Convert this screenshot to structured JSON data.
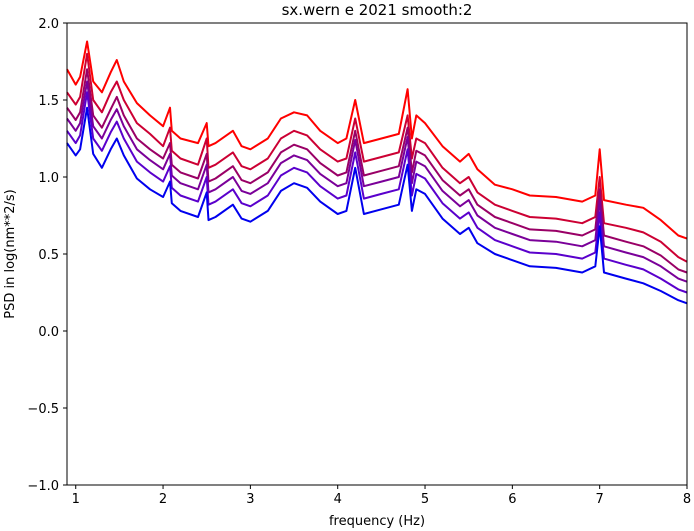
{
  "chart_data": {
    "type": "line",
    "title": "sx.wern e 2021 smooth:2",
    "xlabel": "frequency (Hz)",
    "ylabel": "PSD in log(nm**2/s)",
    "xlim": [
      0.9,
      8.0
    ],
    "ylim": [
      -1.0,
      2.0
    ],
    "xticks": [
      {
        "value": 1,
        "label": "1"
      },
      {
        "value": 2,
        "label": "2"
      },
      {
        "value": 3,
        "label": "3"
      },
      {
        "value": 4,
        "label": "4"
      },
      {
        "value": 5,
        "label": "5"
      },
      {
        "value": 6,
        "label": "6"
      },
      {
        "value": 7,
        "label": "7"
      },
      {
        "value": 8,
        "label": "8"
      }
    ],
    "yticks": [
      {
        "value": -1.0,
        "label": "−1.0"
      },
      {
        "value": -0.5,
        "label": "−0.5"
      },
      {
        "value": 0.0,
        "label": "0.0"
      },
      {
        "value": 0.5,
        "label": "0.5"
      },
      {
        "value": 1.0,
        "label": "1.0"
      },
      {
        "value": 1.5,
        "label": "1.5"
      },
      {
        "value": 2.0,
        "label": "2.0"
      }
    ],
    "grid": false,
    "legend": "none",
    "series": [
      {
        "color": "#ff0000",
        "x": [
          0.9,
          1.0,
          1.05,
          1.13,
          1.2,
          1.3,
          1.4,
          1.47,
          1.55,
          1.7,
          1.85,
          2.0,
          2.08,
          2.1,
          2.2,
          2.4,
          2.5,
          2.52,
          2.6,
          2.8,
          2.9,
          3.0,
          3.2,
          3.35,
          3.5,
          3.65,
          3.8,
          4.0,
          4.1,
          4.2,
          4.3,
          4.5,
          4.7,
          4.8,
          4.85,
          4.9,
          5.0,
          5.2,
          5.4,
          5.5,
          5.6,
          5.8,
          6.0,
          6.2,
          6.5,
          6.8,
          6.95,
          7.0,
          7.05,
          7.3,
          7.5,
          7.7,
          7.9,
          8.0
        ],
        "y": [
          1.7,
          1.6,
          1.65,
          1.88,
          1.62,
          1.55,
          1.68,
          1.76,
          1.62,
          1.48,
          1.4,
          1.33,
          1.45,
          1.3,
          1.25,
          1.22,
          1.35,
          1.2,
          1.22,
          1.3,
          1.2,
          1.18,
          1.25,
          1.38,
          1.42,
          1.4,
          1.3,
          1.22,
          1.25,
          1.5,
          1.22,
          1.25,
          1.28,
          1.57,
          1.25,
          1.4,
          1.35,
          1.2,
          1.1,
          1.15,
          1.05,
          0.95,
          0.92,
          0.88,
          0.87,
          0.84,
          0.88,
          1.18,
          0.85,
          0.82,
          0.8,
          0.72,
          0.62,
          0.6
        ]
      },
      {
        "color": "#cc0033",
        "x": [
          0.9,
          1.0,
          1.05,
          1.13,
          1.2,
          1.3,
          1.4,
          1.47,
          1.55,
          1.7,
          1.85,
          2.0,
          2.08,
          2.1,
          2.2,
          2.4,
          2.5,
          2.52,
          2.6,
          2.8,
          2.9,
          3.0,
          3.2,
          3.35,
          3.5,
          3.65,
          3.8,
          4.0,
          4.1,
          4.2,
          4.3,
          4.5,
          4.7,
          4.8,
          4.85,
          4.9,
          5.0,
          5.2,
          5.4,
          5.5,
          5.6,
          5.8,
          6.0,
          6.2,
          6.5,
          6.8,
          6.95,
          7.0,
          7.05,
          7.3,
          7.5,
          7.7,
          7.9,
          8.0
        ],
        "y": [
          1.55,
          1.47,
          1.52,
          1.8,
          1.5,
          1.42,
          1.55,
          1.62,
          1.5,
          1.35,
          1.28,
          1.2,
          1.32,
          1.17,
          1.12,
          1.08,
          1.25,
          1.06,
          1.08,
          1.16,
          1.07,
          1.05,
          1.12,
          1.25,
          1.3,
          1.27,
          1.18,
          1.1,
          1.12,
          1.38,
          1.1,
          1.13,
          1.16,
          1.4,
          1.12,
          1.25,
          1.22,
          1.06,
          0.96,
          1.0,
          0.9,
          0.82,
          0.78,
          0.74,
          0.73,
          0.7,
          0.74,
          1.0,
          0.7,
          0.67,
          0.64,
          0.58,
          0.48,
          0.45
        ]
      },
      {
        "color": "#990066",
        "x": [
          0.9,
          1.0,
          1.05,
          1.13,
          1.2,
          1.3,
          1.4,
          1.47,
          1.55,
          1.7,
          1.85,
          2.0,
          2.08,
          2.1,
          2.2,
          2.4,
          2.5,
          2.52,
          2.6,
          2.8,
          2.9,
          3.0,
          3.2,
          3.35,
          3.5,
          3.65,
          3.8,
          4.0,
          4.1,
          4.2,
          4.3,
          4.5,
          4.7,
          4.8,
          4.85,
          4.9,
          5.0,
          5.2,
          5.4,
          5.5,
          5.6,
          5.8,
          6.0,
          6.2,
          6.5,
          6.8,
          6.95,
          7.0,
          7.05,
          7.3,
          7.5,
          7.7,
          7.9,
          8.0
        ],
        "y": [
          1.45,
          1.37,
          1.42,
          1.7,
          1.4,
          1.32,
          1.44,
          1.52,
          1.4,
          1.25,
          1.18,
          1.12,
          1.22,
          1.08,
          1.03,
          0.99,
          1.15,
          0.97,
          0.99,
          1.07,
          0.98,
          0.96,
          1.03,
          1.16,
          1.21,
          1.18,
          1.09,
          1.01,
          1.03,
          1.3,
          1.01,
          1.04,
          1.07,
          1.32,
          1.03,
          1.17,
          1.14,
          0.98,
          0.88,
          0.92,
          0.82,
          0.74,
          0.7,
          0.66,
          0.65,
          0.62,
          0.66,
          0.92,
          0.62,
          0.58,
          0.55,
          0.49,
          0.4,
          0.38
        ]
      },
      {
        "color": "#7a0099",
        "x": [
          0.9,
          1.0,
          1.05,
          1.13,
          1.2,
          1.3,
          1.4,
          1.47,
          1.55,
          1.7,
          1.85,
          2.0,
          2.08,
          2.1,
          2.2,
          2.4,
          2.5,
          2.52,
          2.6,
          2.8,
          2.9,
          3.0,
          3.2,
          3.35,
          3.5,
          3.65,
          3.8,
          4.0,
          4.1,
          4.2,
          4.3,
          4.5,
          4.7,
          4.8,
          4.85,
          4.9,
          5.0,
          5.2,
          5.4,
          5.5,
          5.6,
          5.8,
          6.0,
          6.2,
          6.5,
          6.8,
          6.95,
          7.0,
          7.05,
          7.3,
          7.5,
          7.7,
          7.9,
          8.0
        ],
        "y": [
          1.38,
          1.3,
          1.35,
          1.62,
          1.33,
          1.25,
          1.37,
          1.44,
          1.33,
          1.18,
          1.11,
          1.05,
          1.15,
          1.01,
          0.96,
          0.92,
          1.08,
          0.9,
          0.92,
          1.0,
          0.91,
          0.89,
          0.96,
          1.09,
          1.14,
          1.11,
          1.02,
          0.94,
          0.96,
          1.24,
          0.94,
          0.97,
          1.0,
          1.26,
          0.96,
          1.1,
          1.07,
          0.91,
          0.81,
          0.85,
          0.75,
          0.67,
          0.63,
          0.59,
          0.58,
          0.55,
          0.59,
          0.85,
          0.55,
          0.51,
          0.48,
          0.42,
          0.34,
          0.32
        ]
      },
      {
        "color": "#5a00cc",
        "x": [
          0.9,
          1.0,
          1.05,
          1.13,
          1.2,
          1.3,
          1.4,
          1.47,
          1.55,
          1.7,
          1.85,
          2.0,
          2.08,
          2.1,
          2.2,
          2.4,
          2.5,
          2.52,
          2.6,
          2.8,
          2.9,
          3.0,
          3.2,
          3.35,
          3.5,
          3.65,
          3.8,
          4.0,
          4.1,
          4.2,
          4.3,
          4.5,
          4.7,
          4.8,
          4.85,
          4.9,
          5.0,
          5.2,
          5.4,
          5.5,
          5.6,
          5.8,
          6.0,
          6.2,
          6.5,
          6.8,
          6.95,
          7.0,
          7.05,
          7.3,
          7.5,
          7.7,
          7.9,
          8.0
        ],
        "y": [
          1.3,
          1.22,
          1.27,
          1.55,
          1.25,
          1.17,
          1.29,
          1.36,
          1.25,
          1.1,
          1.03,
          0.97,
          1.07,
          0.93,
          0.88,
          0.84,
          1.0,
          0.82,
          0.84,
          0.92,
          0.83,
          0.81,
          0.88,
          1.01,
          1.06,
          1.03,
          0.94,
          0.86,
          0.88,
          1.16,
          0.86,
          0.89,
          0.92,
          1.18,
          0.88,
          1.02,
          0.99,
          0.83,
          0.73,
          0.77,
          0.67,
          0.59,
          0.55,
          0.51,
          0.5,
          0.47,
          0.51,
          0.77,
          0.47,
          0.43,
          0.4,
          0.34,
          0.27,
          0.25
        ]
      },
      {
        "color": "#0000ee",
        "x": [
          0.9,
          1.0,
          1.05,
          1.13,
          1.2,
          1.3,
          1.4,
          1.47,
          1.55,
          1.7,
          1.85,
          2.0,
          2.08,
          2.1,
          2.2,
          2.4,
          2.5,
          2.52,
          2.6,
          2.8,
          2.9,
          3.0,
          3.2,
          3.35,
          3.5,
          3.65,
          3.8,
          4.0,
          4.1,
          4.2,
          4.3,
          4.5,
          4.7,
          4.8,
          4.85,
          4.9,
          5.0,
          5.2,
          5.4,
          5.5,
          5.6,
          5.8,
          6.0,
          6.2,
          6.5,
          6.8,
          6.95,
          7.0,
          7.05,
          7.3,
          7.5,
          7.7,
          7.9,
          8.0
        ],
        "y": [
          1.22,
          1.14,
          1.18,
          1.45,
          1.15,
          1.06,
          1.18,
          1.25,
          1.14,
          0.99,
          0.92,
          0.87,
          0.97,
          0.83,
          0.78,
          0.74,
          0.9,
          0.72,
          0.74,
          0.82,
          0.73,
          0.71,
          0.78,
          0.91,
          0.96,
          0.93,
          0.84,
          0.76,
          0.78,
          1.06,
          0.76,
          0.79,
          0.82,
          1.08,
          0.78,
          0.92,
          0.89,
          0.73,
          0.63,
          0.67,
          0.57,
          0.5,
          0.46,
          0.42,
          0.41,
          0.38,
          0.42,
          0.68,
          0.38,
          0.34,
          0.31,
          0.26,
          0.2,
          0.18
        ]
      }
    ]
  }
}
